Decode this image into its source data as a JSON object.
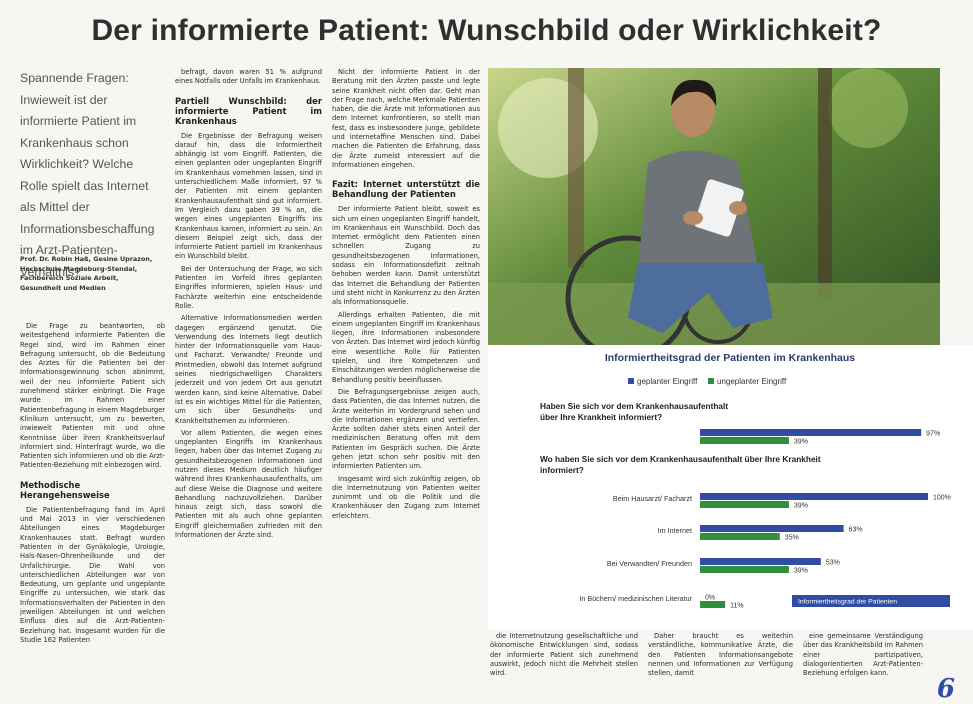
{
  "header": {
    "title": "Der informierte Patient: Wunschbild oder Wirklichkeit?"
  },
  "intro": "Spannende Fragen: Inwieweit ist der informierte Patient im Krankenhaus schon Wirklichkeit? Welche Rolle spielt das Internet als Mittel der Informationsbeschaffung im Arzt-Patienten-Verhältnis?",
  "author": "Prof. Dr. Robin Haß, Gesine Uprazon, Hochschule Magdeburg-Stendal, Fachbereich Soziale Arbeit, Gesundheit und Medien",
  "columns": [
    [
      {
        "text": "Die Frage zu beantworten, ob weitestgehend informierte Patienten die Regel sind, wird im Rahmen einer Befragung untersucht, ob die Bedeutung des Arztes für die Patienten bei der Informationsgewinnung schon abnimmt, weil der neu informierte Patient sich zunehmend stärker einbringt. Die Frage wurde im Rahmen einer Patientenbefragung in einem Magdeburger Klinikum untersucht, um zu bewerten, inwieweit Patienten mit und ohne Kenntnisse über ihren Krankheitsverlauf informiert sind. Hinterfragt wurde, wo die Patienten sich informieren und ob die Arzt-Patienten-Beziehung mit einbezogen wird."
      },
      {
        "heading": "Methodische Herangehensweise"
      },
      {
        "text": "Die Patientenbefragung fand im April und Mai 2013 in vier verschiedenen Abteilungen eines Magdeburger Krankenhauses statt. Befragt wurden Patienten in der Gynäkologie, Urologie, Hals-Nasen-Ohrenheilkunde und der Unfallchirurgie. Die Wahl von unterschiedlichen Abteilungen war von Bedeutung, um geplante und ungeplante Eingriffe zu untersuchen, wie stark das Informationsverhalten der Patienten in den jeweiligen Abteilungen ist und welchen Einfluss dies auf die Arzt-Patienten-Beziehung hat. Insgesamt wurden für die Studie 162 Patienten"
      }
    ],
    [
      {
        "text": "befragt, davon waren 51 % aufgrund eines Notfalls oder Unfalls im Krankenhaus."
      },
      {
        "heading": "Partiell Wunschbild: der informierte Patient im Krankenhaus"
      },
      {
        "text": "Die Ergebnisse der Befragung weisen darauf hin, dass die Informiertheit abhängig ist vom Eingriff. Patienten, die einen geplanten oder ungeplanten Eingriff im Krankenhaus vornehmen lassen, sind in unterschiedlichem Maße informiert. 97 % der Patienten mit einem geplanten Krankenhausaufenthalt sind gut informiert. Im Vergleich dazu gaben 39 % an, die wegen eines ungeplanten Eingriffs ins Krankenhaus kamen, informiert zu sein. An diesem Beispiel zeigt sich, dass der informierte Patient partiell im Krankenhaus ein Wunschbild bleibt."
      },
      {
        "text": "Bei der Untersuchung der Frage, wo sich Patienten im Vorfeld ihres geplanten Eingriffes informieren, spielen Haus- und Fachärzte weiterhin eine entscheidende Rolle."
      },
      {
        "text": "Alternative Informationsmedien werden dagegen ergänzend genutzt. Die Verwendung des Internets liegt deutlich hinter der Informationsquelle vom Haus- und Facharzt. Verwandte/ Freunde und Printmedien, obwohl das Internet aufgrund seines niedrigschwelligen Charakters jederzeit und von jedem Ort aus genutzt werden kann, sind keine Alternative. Dabei ist es ein wichtiges Mittel für die Patienten, um sich über Gesundheits- und Krankheitsthemen zu informieren."
      },
      {
        "text": "Vor allem Patienten, die wegen eines ungeplanten Eingriffs im Krankenhaus liegen, haben über das Internet Zugang zu gesundheitsbezogenen Informationen und nutzen dieses Medium deutlich häufiger während ihres Krankenhausaufenthalts, um auf diese Weise die Diagnose und weitere Behandlung nachzuvollziehen. Darüber hinaus zeigt sich, dass sowohl die Patienten mit als auch ohne geplanten Eingriff gleichermaßen zufrieden mit den Informationen der Ärzte sind."
      }
    ],
    [
      {
        "text": "Nicht der informierte Patient in der Beratung mit den Ärzten passte und legte seine Krankheit nicht offen dar. Geht man der Frage nach, welche Merkmale Patienten haben, die die Ärzte mit Informationen aus dem Internet konfrontieren, so stellt man fest, dass es insbesondere junge, gebildete und internetaffine Menschen sind. Dabei machen die Patienten die Erfahrung, dass die Ärzte zumeist interessiert auf die Informationen eingehen."
      },
      {
        "heading": "Fazit: Internet unterstützt die Behandlung der Patienten"
      },
      {
        "text": "Der informierte Patient bleibt, soweit es sich um einen ungeplanten Eingriff handelt, im Krankenhaus ein Wunschbild. Doch das Internet ermöglicht dem Patienten einen schnellen Zugang zu gesundheitsbezogenen Informationen, sodass ein Informationsdefizit zeitnah behoben werden kann. Damit unterstützt das Internet die Behandlung der Patienten und steht nicht in Konkurrenz zu den Ärzten als Informationsquelle."
      },
      {
        "text": "Allerdings erhalten Patienten, die mit einem ungeplanten Eingriff im Krankenhaus liegen, ihre Informationen insbesondere von Ärzten. Das Internet wird jedoch künftig eine wesentliche Rolle für Patienten spielen, und ihre Kompetenzen und Einschätzungen werden möglicherweise die Behandlung positiv beeinflussen."
      },
      {
        "text": "Die Befragungsergebnisse zeigen auch, dass Patienten, die das Internet nutzen, die Ärzte weiterhin im Vordergrund sehen und die Informationen ergänzen und vertiefen. Ärzte sollten daher stets einen Anteil der medizinischen Beratung offen mit dem Patienten im Gespräch suchen. Die Ärzte gehen jetzt schon sehr positiv mit den informierten Patienten um."
      },
      {
        "text": "Insgesamt wird sich zukünftig zeigen, ob die Internetnutzung von Patienten weiter zunimmt und ob die Politik und die Krankenhäuser den Zugang zum Internet erleichtern."
      }
    ],
    [
      {
        "text": "die Internetnutzung gesellschaftliche und ökonomische Entwicklungen sind, sodass der informierte Patient sich zunehmend auswirkt, jedoch nicht die Mehrheit stellen wird."
      }
    ],
    [
      {
        "text": "Daher braucht es weiterhin verständliche, kommunikative Ärzte, die den Patienten Informationsangebote nennen und Informationen zur Verfügung stellen, damit"
      }
    ],
    [
      {
        "text": "eine gemeinsame Verständigung über das Krankheitsbild im Rahmen einer partizipativen, dialogorientierten Arzt-Patienten-Beziehung erfolgen kann."
      }
    ]
  ],
  "page_number": "6",
  "chart_data": {
    "type": "bar",
    "orientation": "horizontal",
    "title": "Informiertheitsgrad der Patienten im Krankenhaus",
    "questions": [
      "Haben Sie sich vor dem Krankenhausaufenthalt über Ihre Krankheit informiert?",
      "Wo haben Sie sich vor dem Krankenhausaufenthalt über Ihre Krankheit informiert?"
    ],
    "categories": [
      null,
      "Beim Hausarzt/ Facharzt",
      "Im Internet",
      "Bei Verwandten/ Freunden",
      "In Büchern/ medizinischen Literatur"
    ],
    "series": [
      {
        "name": "geplanter Eingriff",
        "color": "#2e4da3",
        "values": [
          97,
          100,
          63,
          53,
          0
        ],
        "value_labels": [
          "97%",
          "100%",
          "63%",
          "53%",
          "0%"
        ]
      },
      {
        "name": "ungeplanter Eingriff",
        "color": "#2f8f3c",
        "values": [
          39,
          39,
          35,
          39,
          11
        ],
        "value_labels": [
          "39%",
          "39%",
          "35%",
          "39%",
          "11%"
        ]
      }
    ],
    "xlim": [
      0,
      100
    ],
    "annotation": "Informiertheitsgrad der Patienten"
  }
}
